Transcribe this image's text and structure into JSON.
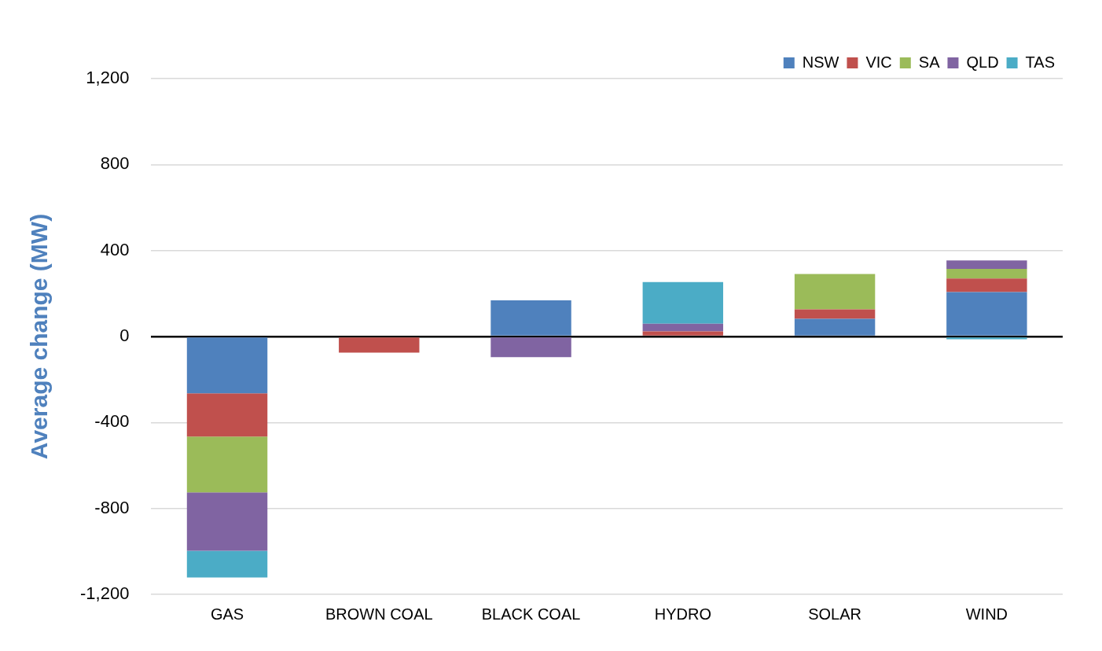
{
  "chart_data": {
    "type": "bar",
    "stacked": true,
    "ylabel": "Average change (MW)",
    "categories": [
      "GAS",
      "BROWN COAL",
      "BLACK COAL",
      "HYDRO",
      "SOLAR",
      "WIND"
    ],
    "series": [
      {
        "name": "NSW",
        "color": "#4f81bd",
        "values": [
          -264,
          null,
          168,
          null,
          82,
          207
        ]
      },
      {
        "name": "VIC",
        "color": "#c0504d",
        "values": [
          -202,
          -75,
          null,
          24,
          44,
          63
        ]
      },
      {
        "name": "SA",
        "color": "#9bbb59",
        "values": [
          -259,
          null,
          null,
          null,
          165,
          45
        ]
      },
      {
        "name": "QLD",
        "color": "#8064a2",
        "values": [
          -272,
          null,
          -96,
          35,
          null,
          39
        ]
      },
      {
        "name": "TAS",
        "color": "#4bacc6",
        "values": [
          -124,
          null,
          null,
          194,
          null,
          -13
        ]
      }
    ],
    "ylim": [
      -1200,
      1200
    ],
    "yticks": [
      {
        "value": -1200,
        "label": "-1,200"
      },
      -800,
      -400,
      0,
      400,
      800,
      {
        "value": 1200,
        "label": "1,200"
      }
    ],
    "grid": "y",
    "legend": "top right"
  }
}
